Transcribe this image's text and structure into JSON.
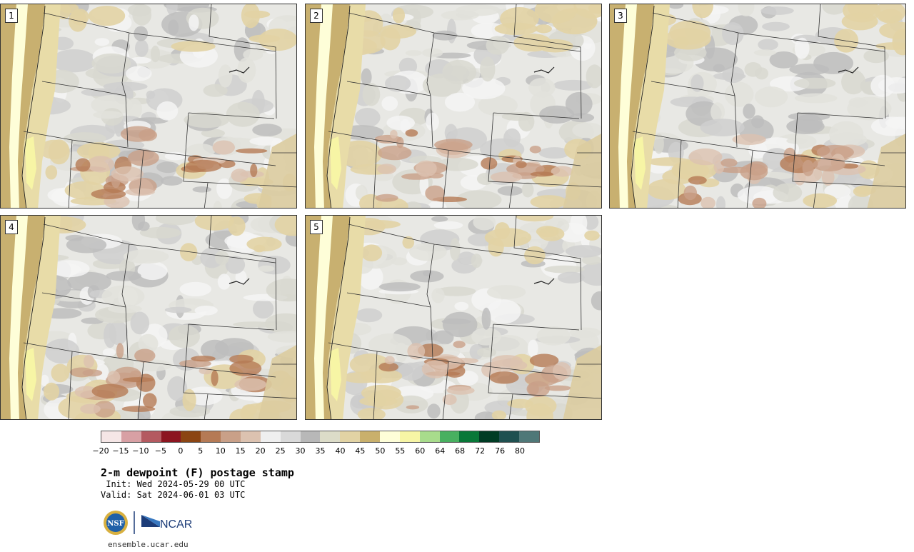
{
  "panels": [
    {
      "number": "1"
    },
    {
      "number": "2"
    },
    {
      "number": "3"
    },
    {
      "number": "4"
    },
    {
      "number": "5"
    }
  ],
  "colorbar": {
    "colors": [
      "#f5e6e6",
      "#d8a0a4",
      "#b45a60",
      "#8c1520",
      "#8b4513",
      "#b57a55",
      "#c9a088",
      "#dcc2b0",
      "#efefef",
      "#d9d9d9",
      "#b8b8b8",
      "#dcdcc8",
      "#e2d3a4",
      "#c9b06c",
      "#fefed8",
      "#f7f5a5",
      "#a8dc8c",
      "#48b060",
      "#087838",
      "#003c24",
      "#1f5050",
      "#4f7878"
    ],
    "tick_labels": [
      "−20",
      "−15",
      "−10",
      "−5",
      "0",
      "5",
      "10",
      "15",
      "20",
      "25",
      "30",
      "35",
      "40",
      "45",
      "50",
      "55",
      "60",
      "64",
      "68",
      "72",
      "76",
      "80"
    ]
  },
  "title": "2-m dewpoint (F) postage stamp",
  "init": " Init: Wed 2024-05-29 00 UTC",
  "valid": "Valid: Sat 2024-06-01 03 UTC",
  "logos": {
    "nsf": "NSF",
    "ncar": "NCAR"
  },
  "site": "ensemble.ucar.edu",
  "palette": {
    "ocean": "#c8b070",
    "coast": "#fefed8",
    "land": "#e8e8e4"
  }
}
